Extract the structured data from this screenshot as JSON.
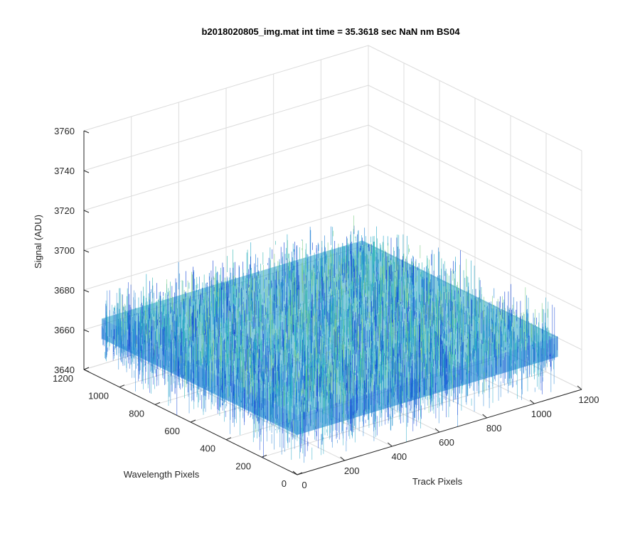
{
  "chart_data": {
    "type": "surface",
    "title": "b2018020805_img.mat int time = 35.3618 sec  NaN nm BS04",
    "xlabel": "Track Pixels",
    "ylabel": "Wavelength Pixels",
    "zlabel": "Signal (ADU)",
    "x_ticks": [
      "0",
      "200",
      "400",
      "600",
      "800",
      "1000",
      "1200"
    ],
    "y_ticks": [
      "0",
      "200",
      "400",
      "600",
      "800",
      "1000",
      "1200"
    ],
    "z_ticks": [
      "3640",
      "3660",
      "3680",
      "3700",
      "3720",
      "3740",
      "3760"
    ],
    "xlim": [
      0,
      1200
    ],
    "ylim": [
      0,
      1200
    ],
    "zlim": [
      3640,
      3760
    ],
    "data_extent": {
      "x": [
        0,
        1100
      ],
      "y": [
        0,
        1100
      ]
    },
    "z_mean": 3670,
    "z_noise_range": [
      3640,
      3730
    ],
    "grid": true,
    "colormap": [
      "#0d3fd6",
      "#1f7fd6",
      "#21a6c8",
      "#33b8b0",
      "#7fcf8a"
    ]
  }
}
